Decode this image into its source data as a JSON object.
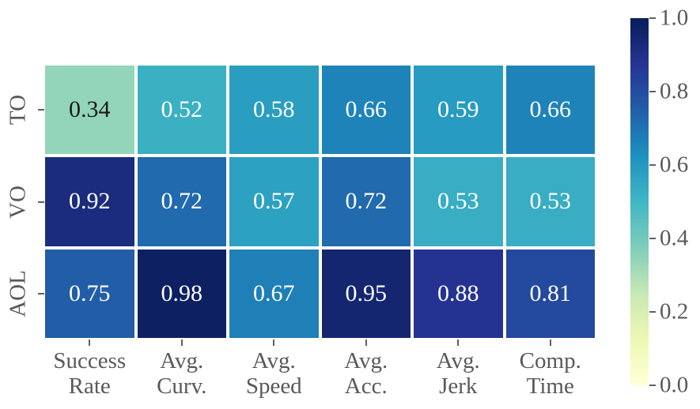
{
  "chart_data": {
    "type": "heatmap",
    "title": "",
    "rows": [
      "TO",
      "VO",
      "AOL"
    ],
    "columns": [
      [
        "Success",
        "Rate"
      ],
      [
        "Avg.",
        "Curv."
      ],
      [
        "Avg.",
        "Speed"
      ],
      [
        "Avg.",
        "Acc."
      ],
      [
        "Avg.",
        "Jerk"
      ],
      [
        "Comp.",
        "Time"
      ]
    ],
    "values": [
      [
        0.34,
        0.52,
        0.58,
        0.66,
        0.59,
        0.66
      ],
      [
        0.92,
        0.72,
        0.57,
        0.72,
        0.53,
        0.53
      ],
      [
        0.75,
        0.98,
        0.67,
        0.95,
        0.88,
        0.81
      ]
    ],
    "vmin": 0.0,
    "vmax": 1.0,
    "value_decimals": 2,
    "colormap": {
      "name": "YlGnBu",
      "stops": [
        [
          0.0,
          "#ffffd9"
        ],
        [
          0.125,
          "#edf8b1"
        ],
        [
          0.25,
          "#c7e9b4"
        ],
        [
          0.375,
          "#7fcdbb"
        ],
        [
          0.5,
          "#41b6c4"
        ],
        [
          0.625,
          "#1d91c0"
        ],
        [
          0.75,
          "#225ea8"
        ],
        [
          0.875,
          "#253494"
        ],
        [
          1.0,
          "#081d58"
        ]
      ]
    },
    "colorbar": {
      "position": "right",
      "tick_labels": [
        "1.0",
        "0.8",
        "0.6",
        "0.4",
        "0.2",
        "0.0"
      ]
    },
    "annotation_light_text": "#ffffff",
    "annotation_dark_text": "#1a1a1a",
    "tick_label_color": "#595959",
    "tick_mark_color": "#606060",
    "cell_gap_color": "#ffffff",
    "grid_on": false,
    "legend": "none"
  }
}
